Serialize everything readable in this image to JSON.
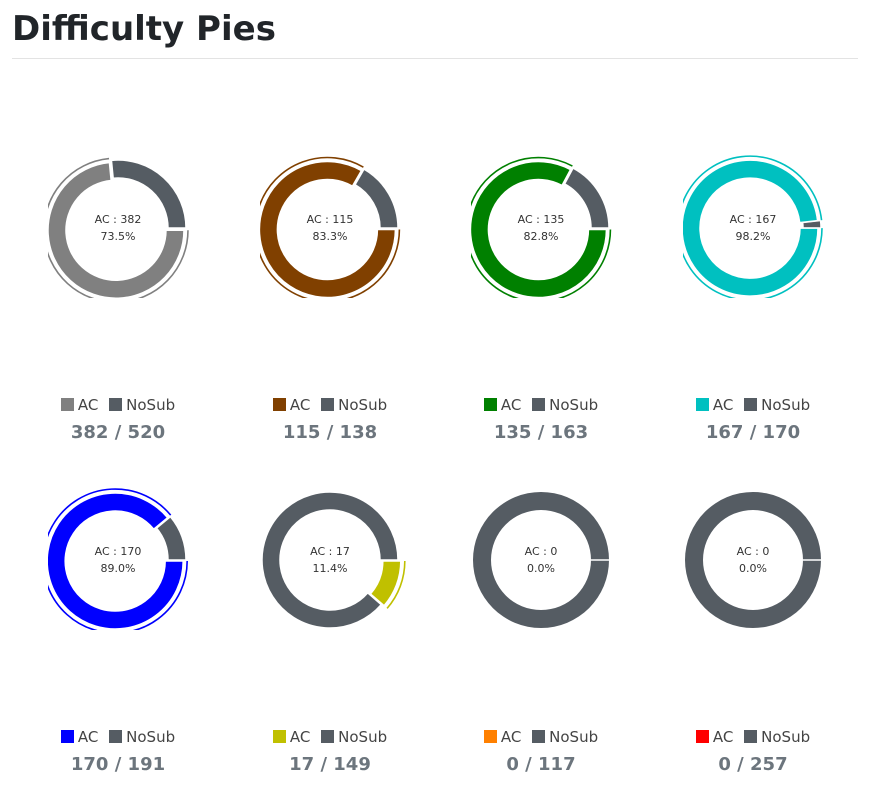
{
  "page": {
    "title": "Difficulty Pies"
  },
  "chart_data": [
    {
      "type": "pie",
      "center_label": "AC : 382",
      "center_pct": "73.5%",
      "legend": [
        "AC",
        "NoSub"
      ],
      "values": {
        "AC": 382,
        "NoSub": 138
      },
      "colors": {
        "AC": "#808080",
        "NoSub": "#555c63"
      },
      "count_text": "382 / 520"
    },
    {
      "type": "pie",
      "center_label": "AC : 115",
      "center_pct": "83.3%",
      "legend": [
        "AC",
        "NoSub"
      ],
      "values": {
        "AC": 115,
        "NoSub": 23
      },
      "colors": {
        "AC": "#804000",
        "NoSub": "#555c63"
      },
      "count_text": "115 / 138"
    },
    {
      "type": "pie",
      "center_label": "AC : 135",
      "center_pct": "82.8%",
      "legend": [
        "AC",
        "NoSub"
      ],
      "values": {
        "AC": 135,
        "NoSub": 28
      },
      "colors": {
        "AC": "#008000",
        "NoSub": "#555c63"
      },
      "count_text": "135 / 163"
    },
    {
      "type": "pie",
      "center_label": "AC : 167",
      "center_pct": "98.2%",
      "legend": [
        "AC",
        "NoSub"
      ],
      "values": {
        "AC": 167,
        "NoSub": 3
      },
      "colors": {
        "AC": "#00c0c0",
        "NoSub": "#555c63"
      },
      "count_text": "167 / 170"
    },
    {
      "type": "pie",
      "center_label": "AC : 170",
      "center_pct": "89.0%",
      "legend": [
        "AC",
        "NoSub"
      ],
      "values": {
        "AC": 170,
        "NoSub": 21
      },
      "colors": {
        "AC": "#0000ff",
        "NoSub": "#555c63"
      },
      "count_text": "170 / 191"
    },
    {
      "type": "pie",
      "center_label": "AC : 17",
      "center_pct": "11.4%",
      "legend": [
        "AC",
        "NoSub"
      ],
      "values": {
        "AC": 17,
        "NoSub": 132
      },
      "colors": {
        "AC": "#c0c000",
        "NoSub": "#555c63"
      },
      "count_text": "17 / 149"
    },
    {
      "type": "pie",
      "center_label": "AC : 0",
      "center_pct": "0.0%",
      "legend": [
        "AC",
        "NoSub"
      ],
      "values": {
        "AC": 0,
        "NoSub": 117
      },
      "colors": {
        "AC": "#ff8000",
        "NoSub": "#555c63"
      },
      "count_text": "0 / 117"
    },
    {
      "type": "pie",
      "center_label": "AC : 0",
      "center_pct": "0.0%",
      "legend": [
        "AC",
        "NoSub"
      ],
      "values": {
        "AC": 0,
        "NoSub": 257
      },
      "colors": {
        "AC": "#ff0000",
        "NoSub": "#555c63"
      },
      "count_text": "0 / 257"
    }
  ]
}
